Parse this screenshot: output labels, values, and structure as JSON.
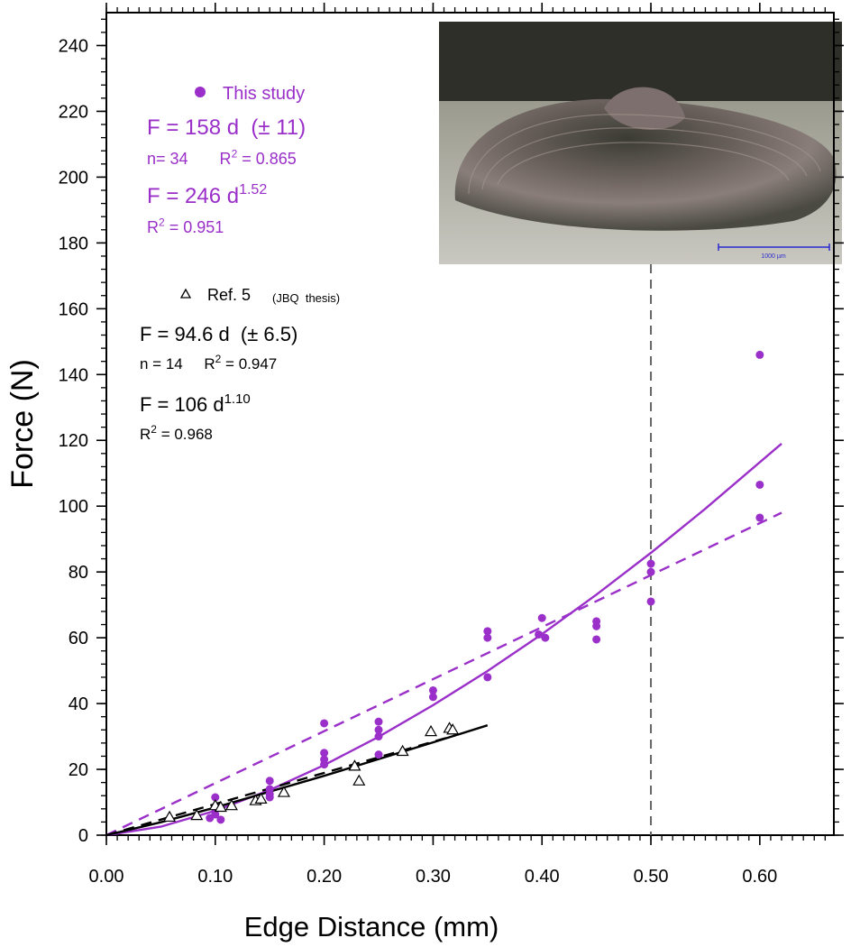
{
  "chart_data": {
    "type": "scatter",
    "x_label": "Edge Distance (mm)",
    "y_label": "Force (N)",
    "xlim": [
      0,
      0.668
    ],
    "ylim": [
      0,
      250
    ],
    "xticks": [
      {
        "value": 0,
        "label": "0.00"
      },
      {
        "value": 0.1,
        "label": "0.10"
      },
      {
        "value": 0.2,
        "label": "0.20"
      },
      {
        "value": 0.3,
        "label": "0.30"
      },
      {
        "value": 0.4,
        "label": "0.40"
      },
      {
        "value": 0.5,
        "label": "0.50"
      },
      {
        "value": 0.6,
        "label": "0.60"
      }
    ],
    "yticks": [
      0,
      20,
      40,
      60,
      80,
      100,
      120,
      140,
      160,
      180,
      200,
      220,
      240
    ],
    "x_minor_step": 0.01,
    "y_minor_step": 4,
    "vline": 0.5,
    "series": [
      {
        "name": "This study",
        "color": "#9a2fc9",
        "marker": "circle",
        "x": [
          0.095,
          0.1,
          0.1,
          0.1,
          0.105,
          0.15,
          0.15,
          0.15,
          0.15,
          0.2,
          0.2,
          0.2,
          0.2,
          0.25,
          0.25,
          0.25,
          0.25,
          0.3,
          0.3,
          0.35,
          0.35,
          0.35,
          0.4,
          0.397,
          0.403,
          0.45,
          0.45,
          0.45,
          0.5,
          0.5,
          0.5,
          0.6,
          0.6,
          0.6
        ],
        "values": [
          5.2,
          11.5,
          8,
          6.3,
          4.7,
          16.5,
          14,
          12.5,
          11.5,
          34,
          25,
          23,
          21.5,
          34.5,
          32,
          30,
          24.5,
          44,
          42,
          62,
          60,
          48,
          66,
          61,
          60,
          65,
          63.5,
          59.5,
          82.5,
          80,
          71,
          146,
          106.5,
          96.5
        ]
      },
      {
        "name": "Ref. 5",
        "color": "#000000",
        "marker": "triangle",
        "x": [
          0.058,
          0.083,
          0.1,
          0.105,
          0.115,
          0.137,
          0.142,
          0.163,
          0.228,
          0.232,
          0.272,
          0.298,
          0.315,
          0.318
        ],
        "values": [
          5.5,
          6,
          9,
          8.5,
          9,
          10.5,
          11,
          13,
          21,
          16.5,
          25.5,
          31.5,
          32.5,
          32
        ]
      }
    ],
    "fits": [
      {
        "color": "#9a2fc9",
        "dashed": false,
        "x": [
          0,
          0.05,
          0.1,
          0.15,
          0.2,
          0.25,
          0.3,
          0.35,
          0.4,
          0.45,
          0.5,
          0.55,
          0.62
        ],
        "values": [
          0,
          2.59,
          7.43,
          13.7,
          21.3,
          29.9,
          39.5,
          49.9,
          61.1,
          73.1,
          85.8,
          99.2,
          119
        ]
      },
      {
        "color": "#9a2fc9",
        "dashed": true,
        "x": [
          0,
          0.62
        ],
        "values": [
          0,
          98
        ]
      },
      {
        "color": "#000000",
        "dashed": false,
        "x": [
          0,
          0.05,
          0.1,
          0.2,
          0.3,
          0.35
        ],
        "values": [
          0,
          3.93,
          8.42,
          18.05,
          28.2,
          33.4
        ]
      },
      {
        "color": "#000000",
        "dashed": true,
        "x": [
          0,
          0.32
        ],
        "values": [
          0,
          30.3
        ]
      }
    ],
    "annotations": [
      {
        "color": "#9a2fc9",
        "parts": [
          {
            "text": "F = 158 d  (± 11)"
          }
        ]
      },
      {
        "color": "#9a2fc9",
        "parts": [
          {
            "text": "n= 34       R"
          },
          {
            "sup": "2"
          },
          {
            "text": " = 0.865"
          }
        ]
      },
      {
        "color": "#9a2fc9",
        "parts": [
          {
            "text": "F = 246 d"
          },
          {
            "sup": "1.52"
          }
        ]
      },
      {
        "color": "#9a2fc9",
        "parts": [
          {
            "text": "R"
          },
          {
            "sup": "2"
          },
          {
            "text": " = 0.951"
          }
        ]
      },
      {
        "color": "#000000",
        "parts": [
          {
            "text": "(JBQ  thesis)"
          }
        ]
      },
      {
        "color": "#000000",
        "parts": [
          {
            "text": "F = 94.6 d  (± 6.5)"
          }
        ]
      },
      {
        "color": "#000000",
        "parts": [
          {
            "text": "n = 14     R"
          },
          {
            "sup": "2"
          },
          {
            "text": " = 0.947"
          }
        ]
      },
      {
        "color": "#000000",
        "parts": [
          {
            "text": "F = 106 d"
          },
          {
            "sup": "1.10"
          }
        ]
      },
      {
        "color": "#000000",
        "parts": [
          {
            "text": "R"
          },
          {
            "sup": "2"
          },
          {
            "text": " = 0.968"
          }
        ]
      }
    ],
    "inset_scale_label": "1000 µm"
  }
}
